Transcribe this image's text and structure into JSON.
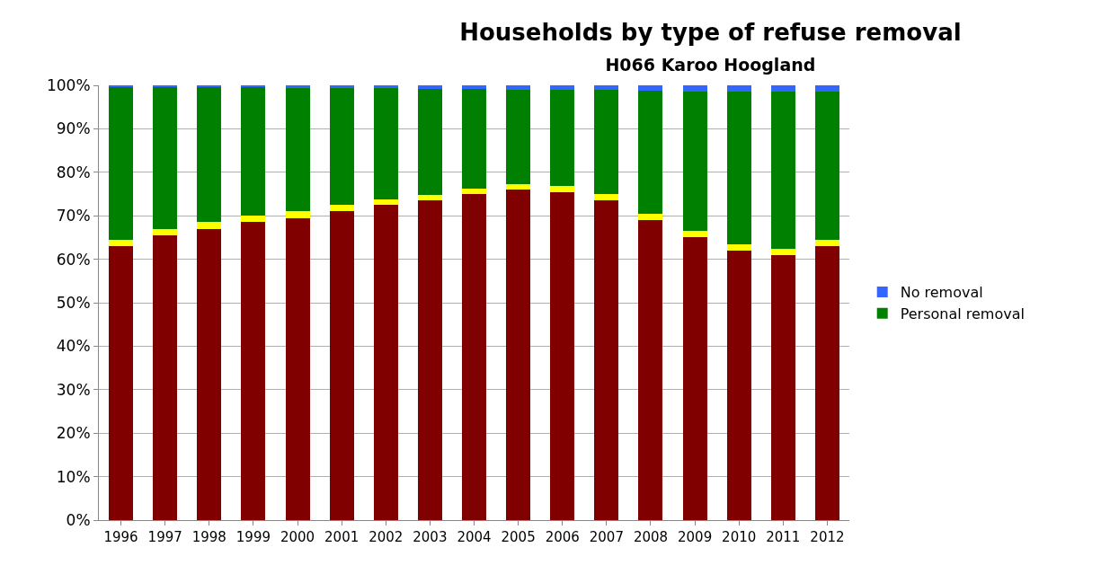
{
  "chart_data": {
    "type": "bar",
    "title": "Households by type of refuse removal",
    "subtitle": "H066 Karoo Hoogland",
    "categories": [
      "1996",
      "1997",
      "1998",
      "1999",
      "2000",
      "2001",
      "2002",
      "2003",
      "2004",
      "2005",
      "2006",
      "2007",
      "2008",
      "2009",
      "2010",
      "2011",
      "2012"
    ],
    "stacked": true,
    "series": [
      {
        "color": "#800000",
        "values": [
          63,
          65.5,
          67,
          68.5,
          69.5,
          71,
          72.5,
          73.5,
          75,
          76,
          75.5,
          73.5,
          69,
          65,
          62,
          61,
          63
        ]
      },
      {
        "color": "#ffff00",
        "values": [
          1.5,
          1.5,
          1.5,
          1.5,
          1.5,
          1.5,
          1.2,
          1.2,
          1.2,
          1.2,
          1.3,
          1.5,
          1.5,
          1.5,
          1.5,
          1.5,
          1.5
        ]
      },
      {
        "name": "Personal removal",
        "color": "#008000",
        "values": [
          35,
          32.5,
          31,
          29.5,
          28.4,
          26.9,
          25.6,
          24.5,
          22.9,
          21.8,
          22.2,
          24,
          28.3,
          32,
          35,
          36,
          34
        ]
      },
      {
        "name": "No removal",
        "color": "#3366ff",
        "values": [
          0.5,
          0.5,
          0.5,
          0.5,
          0.6,
          0.6,
          0.7,
          0.8,
          0.9,
          1,
          1,
          1,
          1.2,
          1.5,
          1.5,
          1.5,
          1.5
        ]
      }
    ],
    "ylim": [
      0,
      100
    ],
    "yticks": [
      {
        "value": 0,
        "label": "0%"
      },
      {
        "value": 10,
        "label": "10%"
      },
      {
        "value": 20,
        "label": "20%"
      },
      {
        "value": 30,
        "label": "30%"
      },
      {
        "value": 40,
        "label": "40%"
      },
      {
        "value": 50,
        "label": "50%"
      },
      {
        "value": 60,
        "label": "60%"
      },
      {
        "value": 70,
        "label": "70%"
      },
      {
        "value": 80,
        "label": "80%"
      },
      {
        "value": 90,
        "label": "90%"
      },
      {
        "value": 100,
        "label": "100%"
      }
    ],
    "grid": "y",
    "legend": "right"
  }
}
